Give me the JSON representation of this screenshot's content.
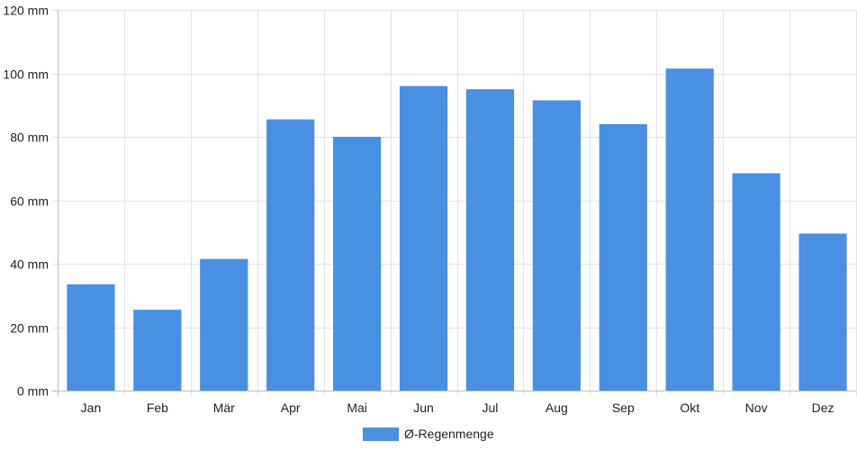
{
  "colors": {
    "bar": "#4a90e2",
    "grid": "#e3e3e3",
    "axis": "#bdbdbd",
    "text": "#222222"
  },
  "chart_data": {
    "type": "bar",
    "title": "",
    "xlabel": "",
    "ylabel": "",
    "unit": "mm",
    "categories": [
      "Jan",
      "Feb",
      "Mär",
      "Apr",
      "Mai",
      "Jun",
      "Jul",
      "Aug",
      "Sep",
      "Okt",
      "Nov",
      "Dez"
    ],
    "series": [
      {
        "name": "Ø-Regenmenge",
        "values": [
          33.5,
          25.5,
          41.5,
          85.5,
          80,
          96,
          95,
          91.5,
          84,
          101.5,
          68.5,
          49.5
        ]
      }
    ],
    "ylim": [
      0,
      120
    ],
    "yticks": [
      0,
      20,
      40,
      60,
      80,
      100,
      120
    ],
    "ytick_labels": [
      "0 mm",
      "20 mm",
      "40 mm",
      "60 mm",
      "80 mm",
      "100 mm",
      "120 mm"
    ],
    "grid": true,
    "legend_position": "bottom-center"
  },
  "legend": {
    "label": "Ø-Regenmenge"
  }
}
